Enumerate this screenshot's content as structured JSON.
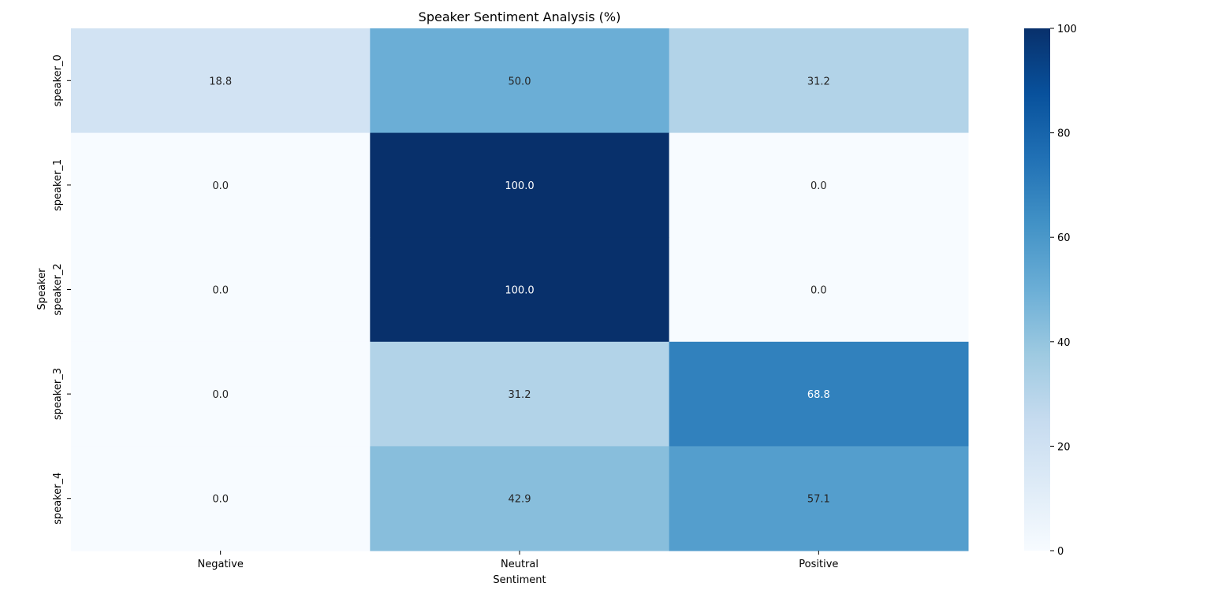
{
  "chart_data": {
    "type": "heatmap",
    "title": "Speaker Sentiment Analysis (%)",
    "xlabel": "Sentiment",
    "ylabel": "Speaker",
    "x_categories": [
      "Negative",
      "Neutral",
      "Positive"
    ],
    "y_categories": [
      "speaker_0",
      "speaker_1",
      "speaker_2",
      "speaker_3",
      "speaker_4"
    ],
    "values": [
      [
        18.8,
        50.0,
        31.2
      ],
      [
        0.0,
        100.0,
        0.0
      ],
      [
        0.0,
        100.0,
        0.0
      ],
      [
        0.0,
        31.2,
        68.8
      ],
      [
        0.0,
        42.9,
        57.1
      ]
    ],
    "colormap": "Blues",
    "color_range": [
      0,
      100
    ],
    "colorbar_ticks": [
      0,
      20,
      40,
      60,
      80,
      100
    ],
    "annotations_format": "0.1f"
  }
}
